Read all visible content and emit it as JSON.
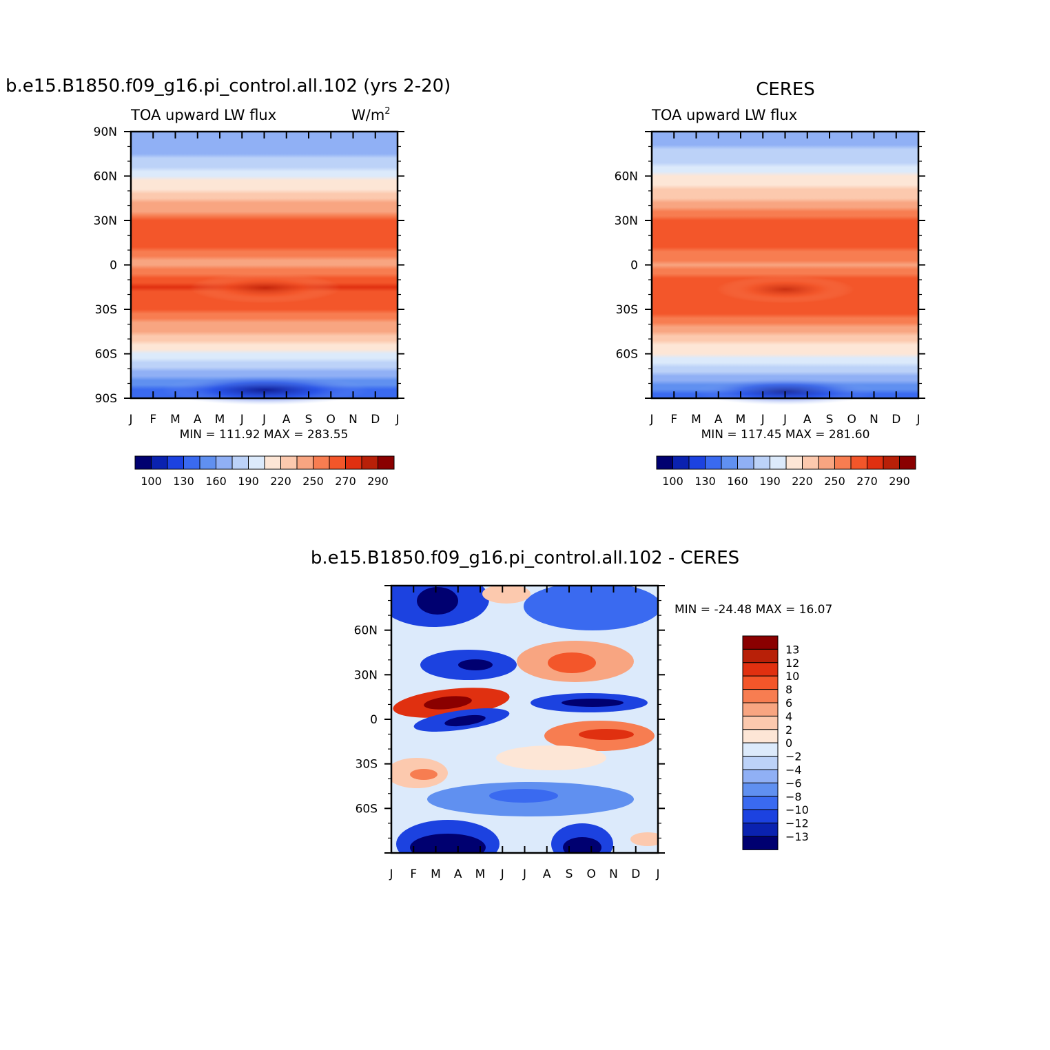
{
  "chart_data": [
    {
      "type": "heatmap",
      "title": "b.e15.B1850.f09_g16.pi_control.all.102 (yrs 2-20)",
      "subtitle_left": "TOA upward LW flux",
      "subtitle_right": "W/m",
      "units_sup": "2",
      "x_tick_labels": [
        "J",
        "F",
        "M",
        "A",
        "M",
        "J",
        "J",
        "A",
        "S",
        "O",
        "N",
        "D",
        "J"
      ],
      "y_tick_labels": [
        "90N",
        "60N",
        "30N",
        "0",
        "30S",
        "60S",
        "90S"
      ],
      "y_tick_values": [
        90,
        60,
        30,
        0,
        -30,
        -60,
        -90
      ],
      "ylim": [
        -90,
        90
      ],
      "min_max_text": "MIN = 111.92 MAX = 283.55",
      "colorbar_labels": [
        "100",
        "130",
        "160",
        "190",
        "220",
        "250",
        "270",
        "290"
      ],
      "profile_lat": [
        -90,
        -75,
        -60,
        -45,
        -30,
        -15,
        0,
        15,
        30,
        45,
        60,
        75,
        90
      ],
      "profile_values": [
        130,
        165,
        200,
        238,
        265,
        270,
        245,
        268,
        262,
        230,
        200,
        172,
        160
      ]
    },
    {
      "type": "heatmap",
      "title": "CERES",
      "subtitle_left": "TOA upward LW flux",
      "x_tick_labels": [
        "J",
        "F",
        "M",
        "A",
        "M",
        "J",
        "J",
        "A",
        "S",
        "O",
        "N",
        "D",
        "J"
      ],
      "y_tick_labels": [
        "60N",
        "30N",
        "0",
        "30S",
        "60S"
      ],
      "y_tick_values": [
        60,
        30,
        0,
        -30,
        -60
      ],
      "ylim": [
        -90,
        90
      ],
      "min_max_text": "MIN = 117.45 MAX = 281.60",
      "colorbar_labels": [
        "100",
        "130",
        "160",
        "190",
        "220",
        "250",
        "270",
        "290"
      ],
      "profile_lat": [
        -90,
        -75,
        -60,
        -45,
        -30,
        -15,
        0,
        15,
        30,
        45,
        60,
        75,
        90
      ],
      "profile_values": [
        138,
        170,
        205,
        240,
        265,
        268,
        248,
        266,
        262,
        232,
        205,
        178,
        170
      ]
    },
    {
      "type": "heatmap",
      "title": "b.e15.B1850.f09_g16.pi_control.all.102 - CERES",
      "x_tick_labels": [
        "J",
        "F",
        "M",
        "A",
        "M",
        "J",
        "J",
        "A",
        "S",
        "O",
        "N",
        "D",
        "J"
      ],
      "y_tick_labels": [
        "60N",
        "30N",
        "0",
        "30S",
        "60S"
      ],
      "y_tick_values": [
        60,
        30,
        0,
        -30,
        -60
      ],
      "ylim": [
        -90,
        90
      ],
      "min_max_text": "MIN = -24.48 MAX =  16.07",
      "colorbar_labels": [
        "13",
        "12",
        "10",
        "8",
        "6",
        "4",
        "2",
        "0",
        "-2",
        "-4",
        "-6",
        "-8",
        "-10",
        "-12",
        "-13"
      ]
    }
  ],
  "colors": {
    "flux_scale": [
      "#000070",
      "#0a22b0",
      "#1c42e0",
      "#3a6af0",
      "#6090f0",
      "#90b0f5",
      "#bcd2f8",
      "#dceafb",
      "#fde6d6",
      "#fcc9ae",
      "#f8a581",
      "#f77d51",
      "#f3562a",
      "#e03010",
      "#b82008",
      "#8a0000"
    ],
    "diff_scale": [
      "#8a0000",
      "#b82008",
      "#e03010",
      "#f3562a",
      "#f77d51",
      "#f8a581",
      "#fcc9ae",
      "#fde6d6",
      "#dceafb",
      "#bcd2f8",
      "#90b0f5",
      "#6090f0",
      "#3a6af0",
      "#1c42e0",
      "#0a22b0",
      "#000070"
    ]
  }
}
